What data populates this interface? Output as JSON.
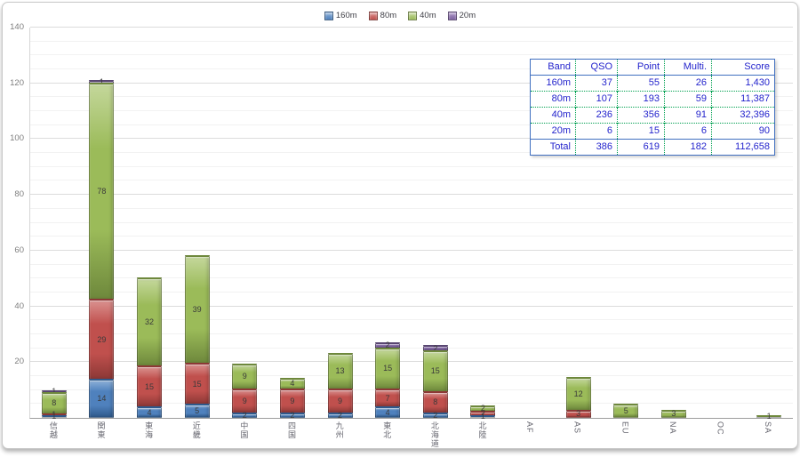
{
  "chart_data": {
    "type": "bar",
    "stacked": true,
    "title": "",
    "xlabel": "",
    "ylabel": "",
    "grid": true,
    "legend_position": "top",
    "ylim": [
      0,
      140
    ],
    "ytick_major": 20,
    "ytick_minor": 5,
    "yticks": [
      20,
      40,
      60,
      80,
      100,
      120,
      140
    ],
    "categories": [
      "信越",
      "関東",
      "東海",
      "近畿",
      "中国",
      "四国",
      "九州",
      "東北",
      "北海道",
      "北陸",
      "AF",
      "AS",
      "EU",
      "NA",
      "OC",
      "SA"
    ],
    "series": [
      {
        "name": "160m",
        "color": "#4f81bd",
        "light": "#8db0d8",
        "dark": "#2f5a8c",
        "values": [
          1,
          14,
          4,
          5,
          2,
          2,
          2,
          4,
          2,
          1,
          0,
          0,
          0,
          0,
          0,
          0
        ]
      },
      {
        "name": "80m",
        "color": "#c0504d",
        "light": "#da918f",
        "dark": "#8c3836",
        "values": [
          1,
          29,
          15,
          15,
          9,
          9,
          9,
          7,
          8,
          2,
          0,
          3,
          0,
          0,
          0,
          0
        ]
      },
      {
        "name": "40m",
        "color": "#9bbb59",
        "light": "#c4d79b",
        "dark": "#6e883c",
        "values": [
          8,
          78,
          32,
          39,
          9,
          4,
          13,
          15,
          15,
          2,
          0,
          12,
          5,
          3,
          0,
          1
        ]
      },
      {
        "name": "20m",
        "color": "#8064a2",
        "light": "#ab94c5",
        "dark": "#594672",
        "values": [
          1,
          1,
          0,
          0,
          0,
          0,
          0,
          2,
          2,
          0,
          0,
          0,
          0,
          0,
          0,
          0
        ]
      }
    ]
  },
  "table": {
    "headers": [
      "Band",
      "QSO",
      "Point",
      "Multi.",
      "Score"
    ],
    "rows": [
      [
        "160m",
        "37",
        "55",
        "26",
        "1,430"
      ],
      [
        "80m",
        "107",
        "193",
        "59",
        "11,387"
      ],
      [
        "40m",
        "236",
        "356",
        "91",
        "32,396"
      ],
      [
        "20m",
        "6",
        "15",
        "6",
        "90"
      ],
      [
        "Total",
        "386",
        "619",
        "182",
        "112,658"
      ]
    ]
  },
  "colors": {
    "table_text": "#2323cc",
    "table_border": "#4170c0",
    "table_grid": "#00a050"
  }
}
